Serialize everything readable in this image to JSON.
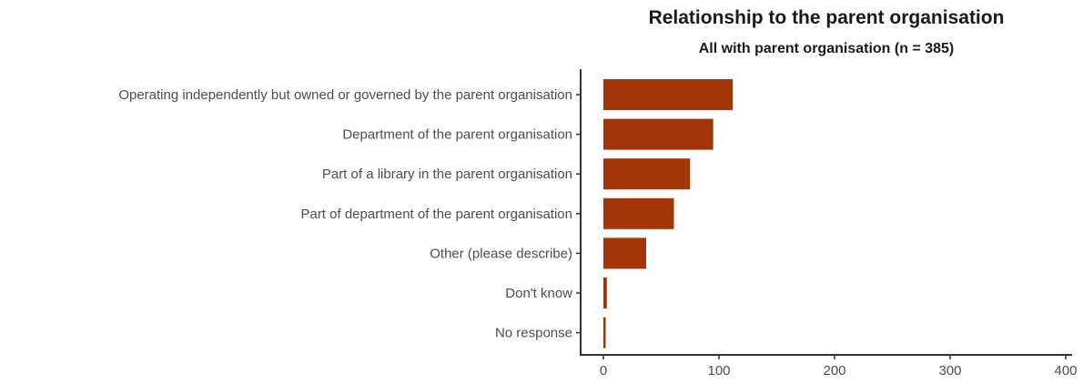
{
  "chart_data": {
    "type": "bar",
    "orientation": "horizontal",
    "title": "Relationship to the parent organisation",
    "subtitle": "All with parent organisation (n = 385)",
    "xlabel": "",
    "ylabel": "",
    "categories": [
      "Operating independently but owned or governed by the parent organisation",
      "Department of the parent organisation",
      "Part of a library in the parent organisation",
      "Part of department of the parent organisation",
      "Other (please describe)",
      "Don't know",
      "No response"
    ],
    "values": [
      112,
      95,
      75,
      61,
      37,
      3,
      2
    ],
    "xlim": [
      0,
      400
    ],
    "xticks": [
      0,
      100,
      200,
      300,
      400
    ],
    "grid": false,
    "bar_color": "#a33508"
  }
}
